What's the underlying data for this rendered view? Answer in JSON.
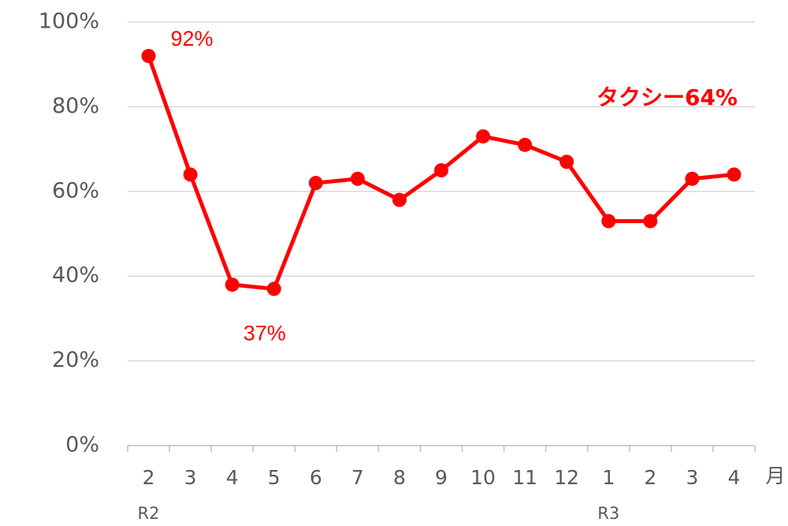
{
  "chart_data": {
    "type": "line",
    "categories": [
      "2",
      "3",
      "4",
      "5",
      "6",
      "7",
      "8",
      "9",
      "10",
      "11",
      "12",
      "1",
      "2",
      "3",
      "4"
    ],
    "year_labels": [
      "R2",
      null,
      null,
      null,
      null,
      null,
      null,
      null,
      null,
      null,
      null,
      "R3",
      null,
      null,
      null
    ],
    "x_label": "月",
    "series": [
      {
        "name": "タクシー",
        "color": "#ff0000",
        "values": [
          92,
          64,
          38,
          37,
          62,
          63,
          58,
          65,
          73,
          71,
          67,
          53,
          53,
          63,
          64
        ],
        "value_labels": [
          "92%",
          null,
          null,
          "37%",
          null,
          null,
          null,
          null,
          null,
          null,
          null,
          null,
          null,
          null,
          "64%"
        ]
      }
    ],
    "ylim": [
      0,
      100
    ],
    "yticks": [
      {
        "value": 0,
        "label": "0%"
      },
      {
        "value": 20,
        "label": "20%"
      },
      {
        "value": 40,
        "label": "40%"
      },
      {
        "value": 60,
        "label": "60%"
      },
      {
        "value": 80,
        "label": "80%"
      },
      {
        "value": 100,
        "label": "100%"
      }
    ],
    "grid": true
  }
}
